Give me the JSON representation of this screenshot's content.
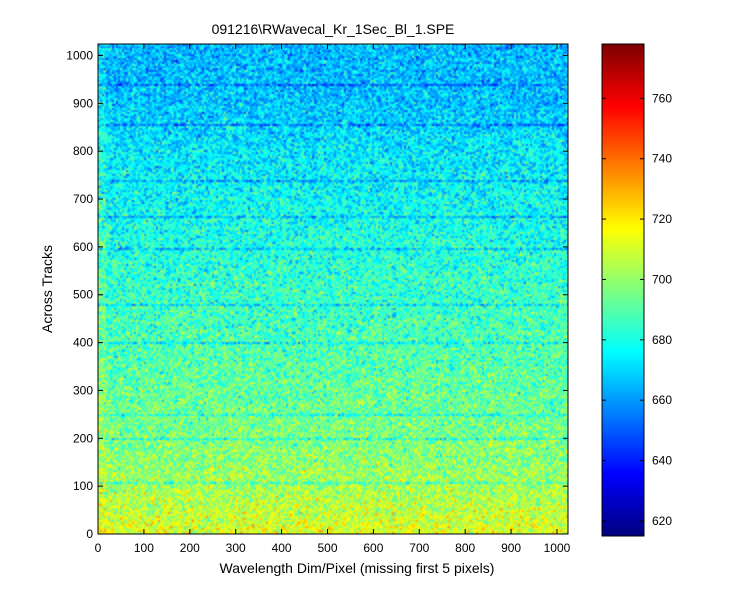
{
  "chart_data": {
    "type": "heatmap",
    "title": "091216\\RWavecal_Kr_1Sec_Bl_1.SPE",
    "xlabel": "Wavelength Dim/Pixel (missing first 5 pixels)",
    "ylabel": "Across Tracks",
    "xlim": [
      0,
      1024
    ],
    "ylim": [
      0,
      1024
    ],
    "x_ticks": [
      "0",
      "100",
      "200",
      "300",
      "400",
      "500",
      "600",
      "700",
      "800",
      "900",
      "1000"
    ],
    "y_ticks": [
      "0",
      "100",
      "200",
      "300",
      "400",
      "500",
      "600",
      "700",
      "800",
      "900",
      "1000"
    ],
    "colorbar": {
      "range": [
        615,
        778
      ],
      "ticks": [
        "620",
        "640",
        "660",
        "680",
        "700",
        "720",
        "740",
        "760"
      ],
      "colormap": "jet"
    },
    "intensity_profile": {
      "rows": [
        0,
        50,
        100,
        200,
        300,
        400,
        500,
        600,
        700,
        800,
        900,
        1024
      ],
      "values": [
        712,
        707,
        702,
        696,
        692,
        688,
        685,
        681,
        677,
        673,
        667,
        665
      ]
    },
    "dark_rows": [
      104,
      198,
      247,
      400,
      478,
      598,
      665,
      738,
      858,
      938
    ]
  }
}
